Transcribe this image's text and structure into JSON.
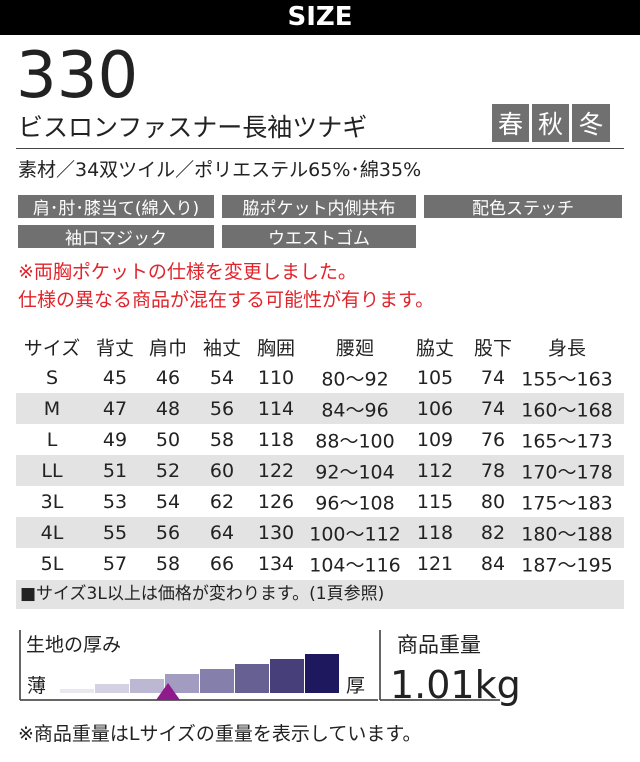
{
  "header": {
    "title": "SIZE"
  },
  "product": {
    "model": "330",
    "name": "ビスロンファスナー長袖ツナギ",
    "seasons": [
      "春",
      "秋",
      "冬"
    ]
  },
  "material": "素材／34双ツイル／ポリエステル65%･綿35%",
  "tags": [
    "肩･肘･膝当て(綿入り)",
    "脇ポケット内側共布",
    "配色ステッチ",
    "袖口マジック",
    "ウエストゴム"
  ],
  "notices": [
    "※両胸ポケットの仕様を変更しました。",
    "仕様の異なる商品が混在する可能性が有ります。"
  ],
  "table": {
    "headers": [
      "サイズ",
      "背丈",
      "肩巾",
      "袖丈",
      "胸囲",
      "腰廻",
      "脇丈",
      "股下",
      "身長"
    ],
    "rows": [
      [
        "S",
        "45",
        "46",
        "54",
        "110",
        "80～92",
        "105",
        "74",
        "155～163"
      ],
      [
        "M",
        "47",
        "48",
        "56",
        "114",
        "84～96",
        "106",
        "74",
        "160～168"
      ],
      [
        "L",
        "49",
        "50",
        "58",
        "118",
        "88～100",
        "109",
        "76",
        "165～173"
      ],
      [
        "LL",
        "51",
        "52",
        "60",
        "122",
        "92～104",
        "112",
        "78",
        "170～178"
      ],
      [
        "3L",
        "53",
        "54",
        "62",
        "126",
        "96～108",
        "115",
        "80",
        "175～183"
      ],
      [
        "4L",
        "55",
        "56",
        "64",
        "130",
        "100～112",
        "118",
        "82",
        "180～188"
      ],
      [
        "5L",
        "57",
        "58",
        "66",
        "134",
        "104～116",
        "121",
        "84",
        "187～195"
      ]
    ]
  },
  "footnote": "■サイズ3L以上は価格が変わります。(1頁参照)",
  "thickness": {
    "label": "生地の厚み",
    "thin": "薄",
    "thick": "厚"
  },
  "weight": {
    "label": "商品重量",
    "value": "1.01kg"
  },
  "note": "※商品重量はLサイズの重量を表示しています。"
}
